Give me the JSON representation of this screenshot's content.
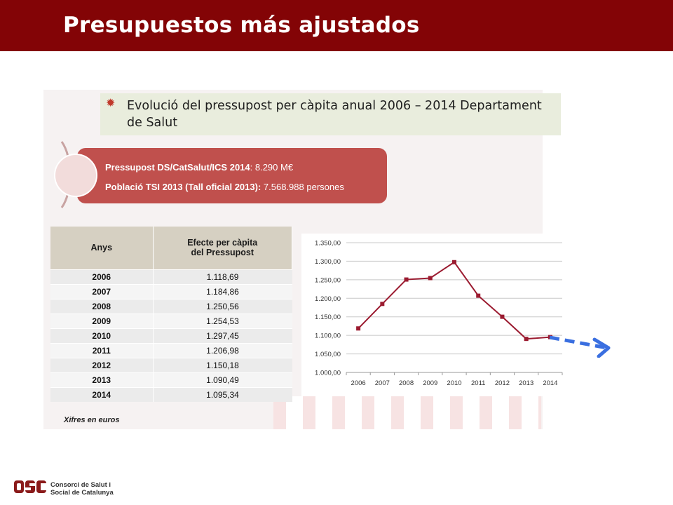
{
  "header": {
    "title": "Presupuestos más ajustados"
  },
  "title_box": {
    "text": "Evolució del pressupost per càpita anual 2006 – 2014 Departament de Salut"
  },
  "pill": {
    "line1_bold": "Pressupost DS/CatSalut/ICS 2014",
    "line1_rest": ": 8.290 M€",
    "line2_bold": "Població TSI 2013 (Tall oficial 2013):",
    "line2_rest": " 7.568.988 persones"
  },
  "table": {
    "col1": "Anys",
    "col2_line1": "Efecte per càpita",
    "col2_line2": "del Pressupost",
    "rows": [
      {
        "year": "2006",
        "value": "1.118,69"
      },
      {
        "year": "2007",
        "value": "1.184,86"
      },
      {
        "year": "2008",
        "value": "1.250,56"
      },
      {
        "year": "2009",
        "value": "1.254,53"
      },
      {
        "year": "2010",
        "value": "1.297,45"
      },
      {
        "year": "2011",
        "value": "1.206,98"
      },
      {
        "year": "2012",
        "value": "1.150,18"
      },
      {
        "year": "2013",
        "value": "1.090,49"
      },
      {
        "year": "2014",
        "value": "1.095,34"
      }
    ]
  },
  "unit_note": "Xifres en  euros",
  "chart_data": {
    "type": "line",
    "categories": [
      "2006",
      "2007",
      "2008",
      "2009",
      "2010",
      "2011",
      "2012",
      "2013",
      "2014"
    ],
    "series": [
      {
        "values": [
          1118.69,
          1184.86,
          1250.56,
          1254.53,
          1297.45,
          1206.98,
          1150.18,
          1090.49,
          1095.34
        ],
        "color": "#9b1b30"
      }
    ],
    "yticks": [
      "1.000,00",
      "1.050,00",
      "1.100,00",
      "1.150,00",
      "1.200,00",
      "1.250,00",
      "1.300,00",
      "1.350,00"
    ],
    "ylim": [
      1000,
      1350
    ],
    "grid": true,
    "trend_arrow_color": "#3a6fe0"
  },
  "logo": {
    "line1": "Consorci de Salut i",
    "line2": "Social de Catalunya"
  },
  "colors": {
    "header": "#830406",
    "pill": "#c0504d",
    "title_box": "#e9eddd",
    "table_header": "#d6d0c2"
  }
}
